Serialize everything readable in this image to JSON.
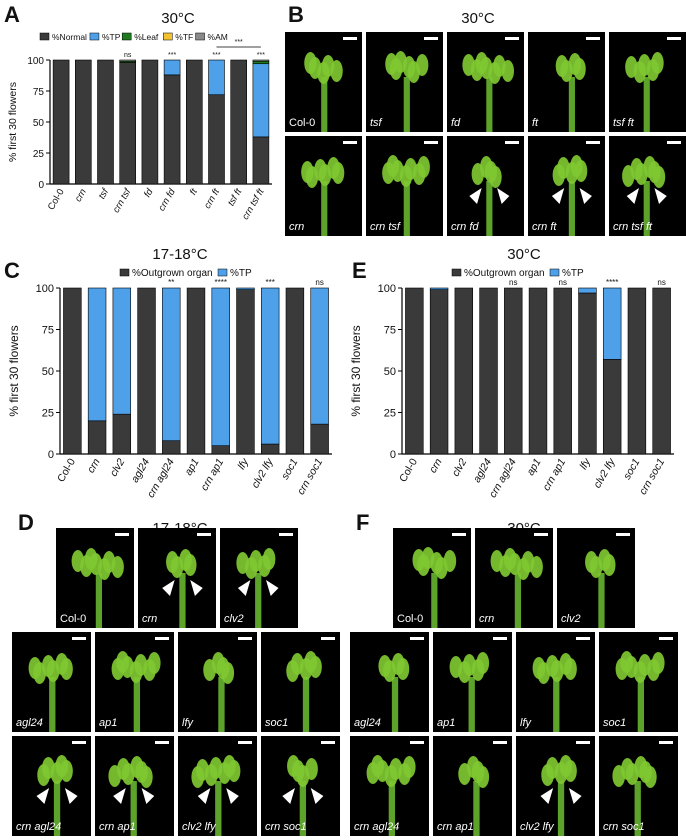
{
  "panels": {
    "A": {
      "letter": "A",
      "title": "30°C"
    },
    "B": {
      "letter": "B",
      "title": "30°C"
    },
    "C": {
      "letter": "C",
      "title": "17-18°C"
    },
    "D": {
      "letter": "D",
      "title": "17-18°C"
    },
    "E": {
      "letter": "E",
      "title": "30°C"
    },
    "F": {
      "letter": "F",
      "title": "30°C"
    }
  },
  "colors": {
    "dark": "#3a3a3a",
    "blue": "#4ea0e8",
    "green": "#1e7a1e",
    "yellow": "#f2c230",
    "gray": "#8a8a8a",
    "photo_bg": "#000000",
    "plant": "#7fc832"
  },
  "chart_data": [
    {
      "id": "A",
      "type": "bar",
      "stacked": true,
      "title": "30°C",
      "ylabel": "% first 30 flowers",
      "ylim": [
        0,
        100
      ],
      "yticks": [
        0,
        25,
        50,
        75,
        100
      ],
      "categories": [
        "Col-0",
        "crn",
        "tsf",
        "crn tsf",
        "fd",
        "crn fd",
        "ft",
        "crn ft",
        "tsf ft",
        "crn tsf ft"
      ],
      "series": [
        {
          "name": "%Normal",
          "color": "#3a3a3a",
          "values": [
            100,
            100,
            100,
            98,
            100,
            88,
            100,
            72,
            100,
            38
          ]
        },
        {
          "name": "%TP",
          "color": "#4ea0e8",
          "values": [
            0,
            0,
            0,
            0,
            0,
            12,
            0,
            28,
            0,
            59
          ]
        },
        {
          "name": "%Leaf",
          "color": "#1e7a1e",
          "values": [
            0,
            0,
            0,
            1,
            0,
            0,
            0,
            0,
            0,
            2
          ]
        },
        {
          "name": "%TF",
          "color": "#f2c230",
          "values": [
            0,
            0,
            0,
            0,
            0,
            0,
            0,
            0,
            0,
            0
          ]
        },
        {
          "name": "%AM",
          "color": "#8a8a8a",
          "values": [
            0,
            0,
            0,
            1,
            0,
            0,
            0,
            0,
            0,
            1
          ]
        }
      ],
      "annotations": [
        "",
        "",
        "",
        "ns",
        "",
        "***",
        "",
        "***",
        "",
        "***"
      ],
      "bracket_label": "***",
      "legend": "top"
    },
    {
      "id": "C",
      "type": "bar",
      "stacked": true,
      "title": "17-18°C",
      "ylabel": "% first 30 flowers",
      "ylim": [
        0,
        100
      ],
      "yticks": [
        0,
        25,
        50,
        75,
        100
      ],
      "categories": [
        "Col-0",
        "crn",
        "clv2",
        "agl24",
        "crn agl24",
        "ap1",
        "crn ap1",
        "lfy",
        "clv2 lfy",
        "soc1",
        "crn soc1"
      ],
      "series": [
        {
          "name": "%Outgrown organ",
          "color": "#3a3a3a",
          "values": [
            100,
            20,
            24,
            100,
            8,
            100,
            5,
            99,
            6,
            100,
            18
          ]
        },
        {
          "name": "%TP",
          "color": "#4ea0e8",
          "values": [
            0,
            80,
            76,
            0,
            92,
            0,
            95,
            1,
            94,
            0,
            82
          ]
        }
      ],
      "annotations": [
        "",
        "",
        "",
        "",
        "**",
        "",
        "****",
        "",
        "***",
        "",
        "ns"
      ],
      "legend": "top"
    },
    {
      "id": "E",
      "type": "bar",
      "stacked": true,
      "title": "30°C",
      "ylabel": "% first 30 flowers",
      "ylim": [
        0,
        100
      ],
      "yticks": [
        0,
        25,
        50,
        75,
        100
      ],
      "categories": [
        "Col-0",
        "crn",
        "clv2",
        "agl24",
        "crn agl24",
        "ap1",
        "crn ap1",
        "lfy",
        "clv2 lfy",
        "soc1",
        "crn soc1"
      ],
      "series": [
        {
          "name": "%Outgrown organ",
          "color": "#3a3a3a",
          "values": [
            100,
            99,
            100,
            100,
            100,
            100,
            100,
            97,
            57,
            100,
            100
          ]
        },
        {
          "name": "%TP",
          "color": "#4ea0e8",
          "values": [
            0,
            1,
            0,
            0,
            0,
            0,
            0,
            3,
            43,
            0,
            0
          ]
        }
      ],
      "annotations": [
        "",
        "",
        "",
        "",
        "ns",
        "",
        "ns",
        "",
        "****",
        "",
        "ns"
      ],
      "legend": "top"
    }
  ],
  "photos": {
    "B": [
      "Col-0",
      "tsf",
      "fd",
      "ft",
      "tsf ft",
      "crn",
      "crn tsf",
      "crn fd",
      "crn ft",
      "crn tsf ft"
    ],
    "D_top": [
      "Col-0",
      "crn",
      "clv2"
    ],
    "D_mid": [
      "agl24",
      "ap1",
      "lfy",
      "soc1"
    ],
    "D_bot": [
      "crn agl24",
      "crn ap1",
      "clv2 lfy",
      "crn soc1"
    ],
    "F_top": [
      "Col-0",
      "crn",
      "clv2"
    ],
    "F_mid": [
      "agl24",
      "ap1",
      "lfy",
      "soc1"
    ],
    "F_bot": [
      "crn agl24",
      "crn ap1",
      "clv2 lfy",
      "crn soc1"
    ]
  }
}
